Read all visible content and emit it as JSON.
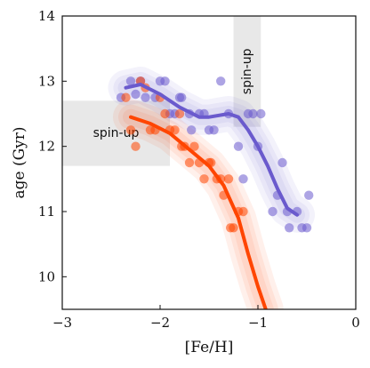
{
  "chart_data": {
    "type": "scatter",
    "xlabel": "[Fe/H]",
    "ylabel": "age (Gyr)",
    "xlim": [
      -3,
      0
    ],
    "ylim": [
      9.5,
      14
    ],
    "xticks": [
      -3,
      -2,
      -1,
      0
    ],
    "xtick_labels": [
      "−3",
      "−2",
      "−1",
      "0"
    ],
    "yticks": [
      10,
      11,
      12,
      13,
      14
    ],
    "ytick_labels": [
      "10",
      "11",
      "12",
      "13",
      "14"
    ],
    "grid": false,
    "legend": "none",
    "annotations": [
      {
        "text": "spin-up",
        "orientation": "horizontal",
        "x_range": [
          -3,
          -1.9
        ],
        "y_range": [
          11.7,
          12.7
        ]
      },
      {
        "text": "spin-up",
        "orientation": "vertical",
        "x_range": [
          -1.25,
          -0.97
        ],
        "y_range": [
          12.3,
          14
        ]
      }
    ],
    "series": [
      {
        "color": "#6a5acd",
        "points": [
          [
            -2.4,
            12.75
          ],
          [
            -2.3,
            13.0
          ],
          [
            -2.25,
            12.8
          ],
          [
            -2.2,
            13.0
          ],
          [
            -2.15,
            12.75
          ],
          [
            -2.05,
            12.75
          ],
          [
            -2.0,
            13.0
          ],
          [
            -1.95,
            13.0
          ],
          [
            -1.9,
            12.5
          ],
          [
            -1.85,
            12.5
          ],
          [
            -1.8,
            12.75
          ],
          [
            -1.78,
            12.75
          ],
          [
            -1.7,
            12.5
          ],
          [
            -1.68,
            12.25
          ],
          [
            -1.6,
            12.5
          ],
          [
            -1.55,
            12.5
          ],
          [
            -1.5,
            12.25
          ],
          [
            -1.45,
            12.25
          ],
          [
            -1.38,
            13.0
          ],
          [
            -1.3,
            12.5
          ],
          [
            -1.2,
            12.0
          ],
          [
            -1.15,
            11.5
          ],
          [
            -1.1,
            12.5
          ],
          [
            -1.05,
            12.5
          ],
          [
            -1.0,
            12.0
          ],
          [
            -0.97,
            12.5
          ],
          [
            -0.85,
            11.0
          ],
          [
            -0.8,
            11.25
          ],
          [
            -0.75,
            11.75
          ],
          [
            -0.7,
            11.0
          ],
          [
            -0.68,
            10.75
          ],
          [
            -0.6,
            11.0
          ],
          [
            -0.55,
            10.75
          ],
          [
            -0.5,
            10.75
          ],
          [
            -0.48,
            11.25
          ]
        ],
        "trend": [
          [
            -2.35,
            12.9
          ],
          [
            -2.2,
            12.95
          ],
          [
            -2.0,
            12.8
          ],
          [
            -1.8,
            12.6
          ],
          [
            -1.6,
            12.45
          ],
          [
            -1.5,
            12.45
          ],
          [
            -1.3,
            12.5
          ],
          [
            -1.2,
            12.45
          ],
          [
            -1.1,
            12.25
          ],
          [
            -1.0,
            12.0
          ],
          [
            -0.9,
            11.7
          ],
          [
            -0.8,
            11.35
          ],
          [
            -0.7,
            11.05
          ],
          [
            -0.6,
            10.95
          ]
        ]
      },
      {
        "color": "#ff4500",
        "points": [
          [
            -2.35,
            12.75
          ],
          [
            -2.3,
            12.25
          ],
          [
            -2.25,
            12.0
          ],
          [
            -2.2,
            13.0
          ],
          [
            -2.15,
            12.9
          ],
          [
            -2.1,
            12.25
          ],
          [
            -2.05,
            12.25
          ],
          [
            -2.0,
            12.75
          ],
          [
            -1.95,
            12.5
          ],
          [
            -1.9,
            12.25
          ],
          [
            -1.85,
            12.25
          ],
          [
            -1.8,
            12.5
          ],
          [
            -1.78,
            12.0
          ],
          [
            -1.75,
            12.0
          ],
          [
            -1.7,
            11.75
          ],
          [
            -1.65,
            12.0
          ],
          [
            -1.6,
            11.75
          ],
          [
            -1.55,
            11.5
          ],
          [
            -1.5,
            11.75
          ],
          [
            -1.48,
            11.75
          ],
          [
            -1.42,
            11.5
          ],
          [
            -1.38,
            11.5
          ],
          [
            -1.35,
            11.25
          ],
          [
            -1.3,
            11.5
          ],
          [
            -1.28,
            10.75
          ],
          [
            -1.25,
            10.75
          ],
          [
            -1.2,
            11.0
          ],
          [
            -1.15,
            11.0
          ]
        ],
        "trend": [
          [
            -2.3,
            12.45
          ],
          [
            -2.1,
            12.35
          ],
          [
            -1.9,
            12.2
          ],
          [
            -1.7,
            11.95
          ],
          [
            -1.5,
            11.7
          ],
          [
            -1.35,
            11.4
          ],
          [
            -1.2,
            10.9
          ],
          [
            -1.1,
            10.35
          ],
          [
            -1.0,
            9.85
          ],
          [
            -0.92,
            9.5
          ]
        ]
      }
    ]
  }
}
